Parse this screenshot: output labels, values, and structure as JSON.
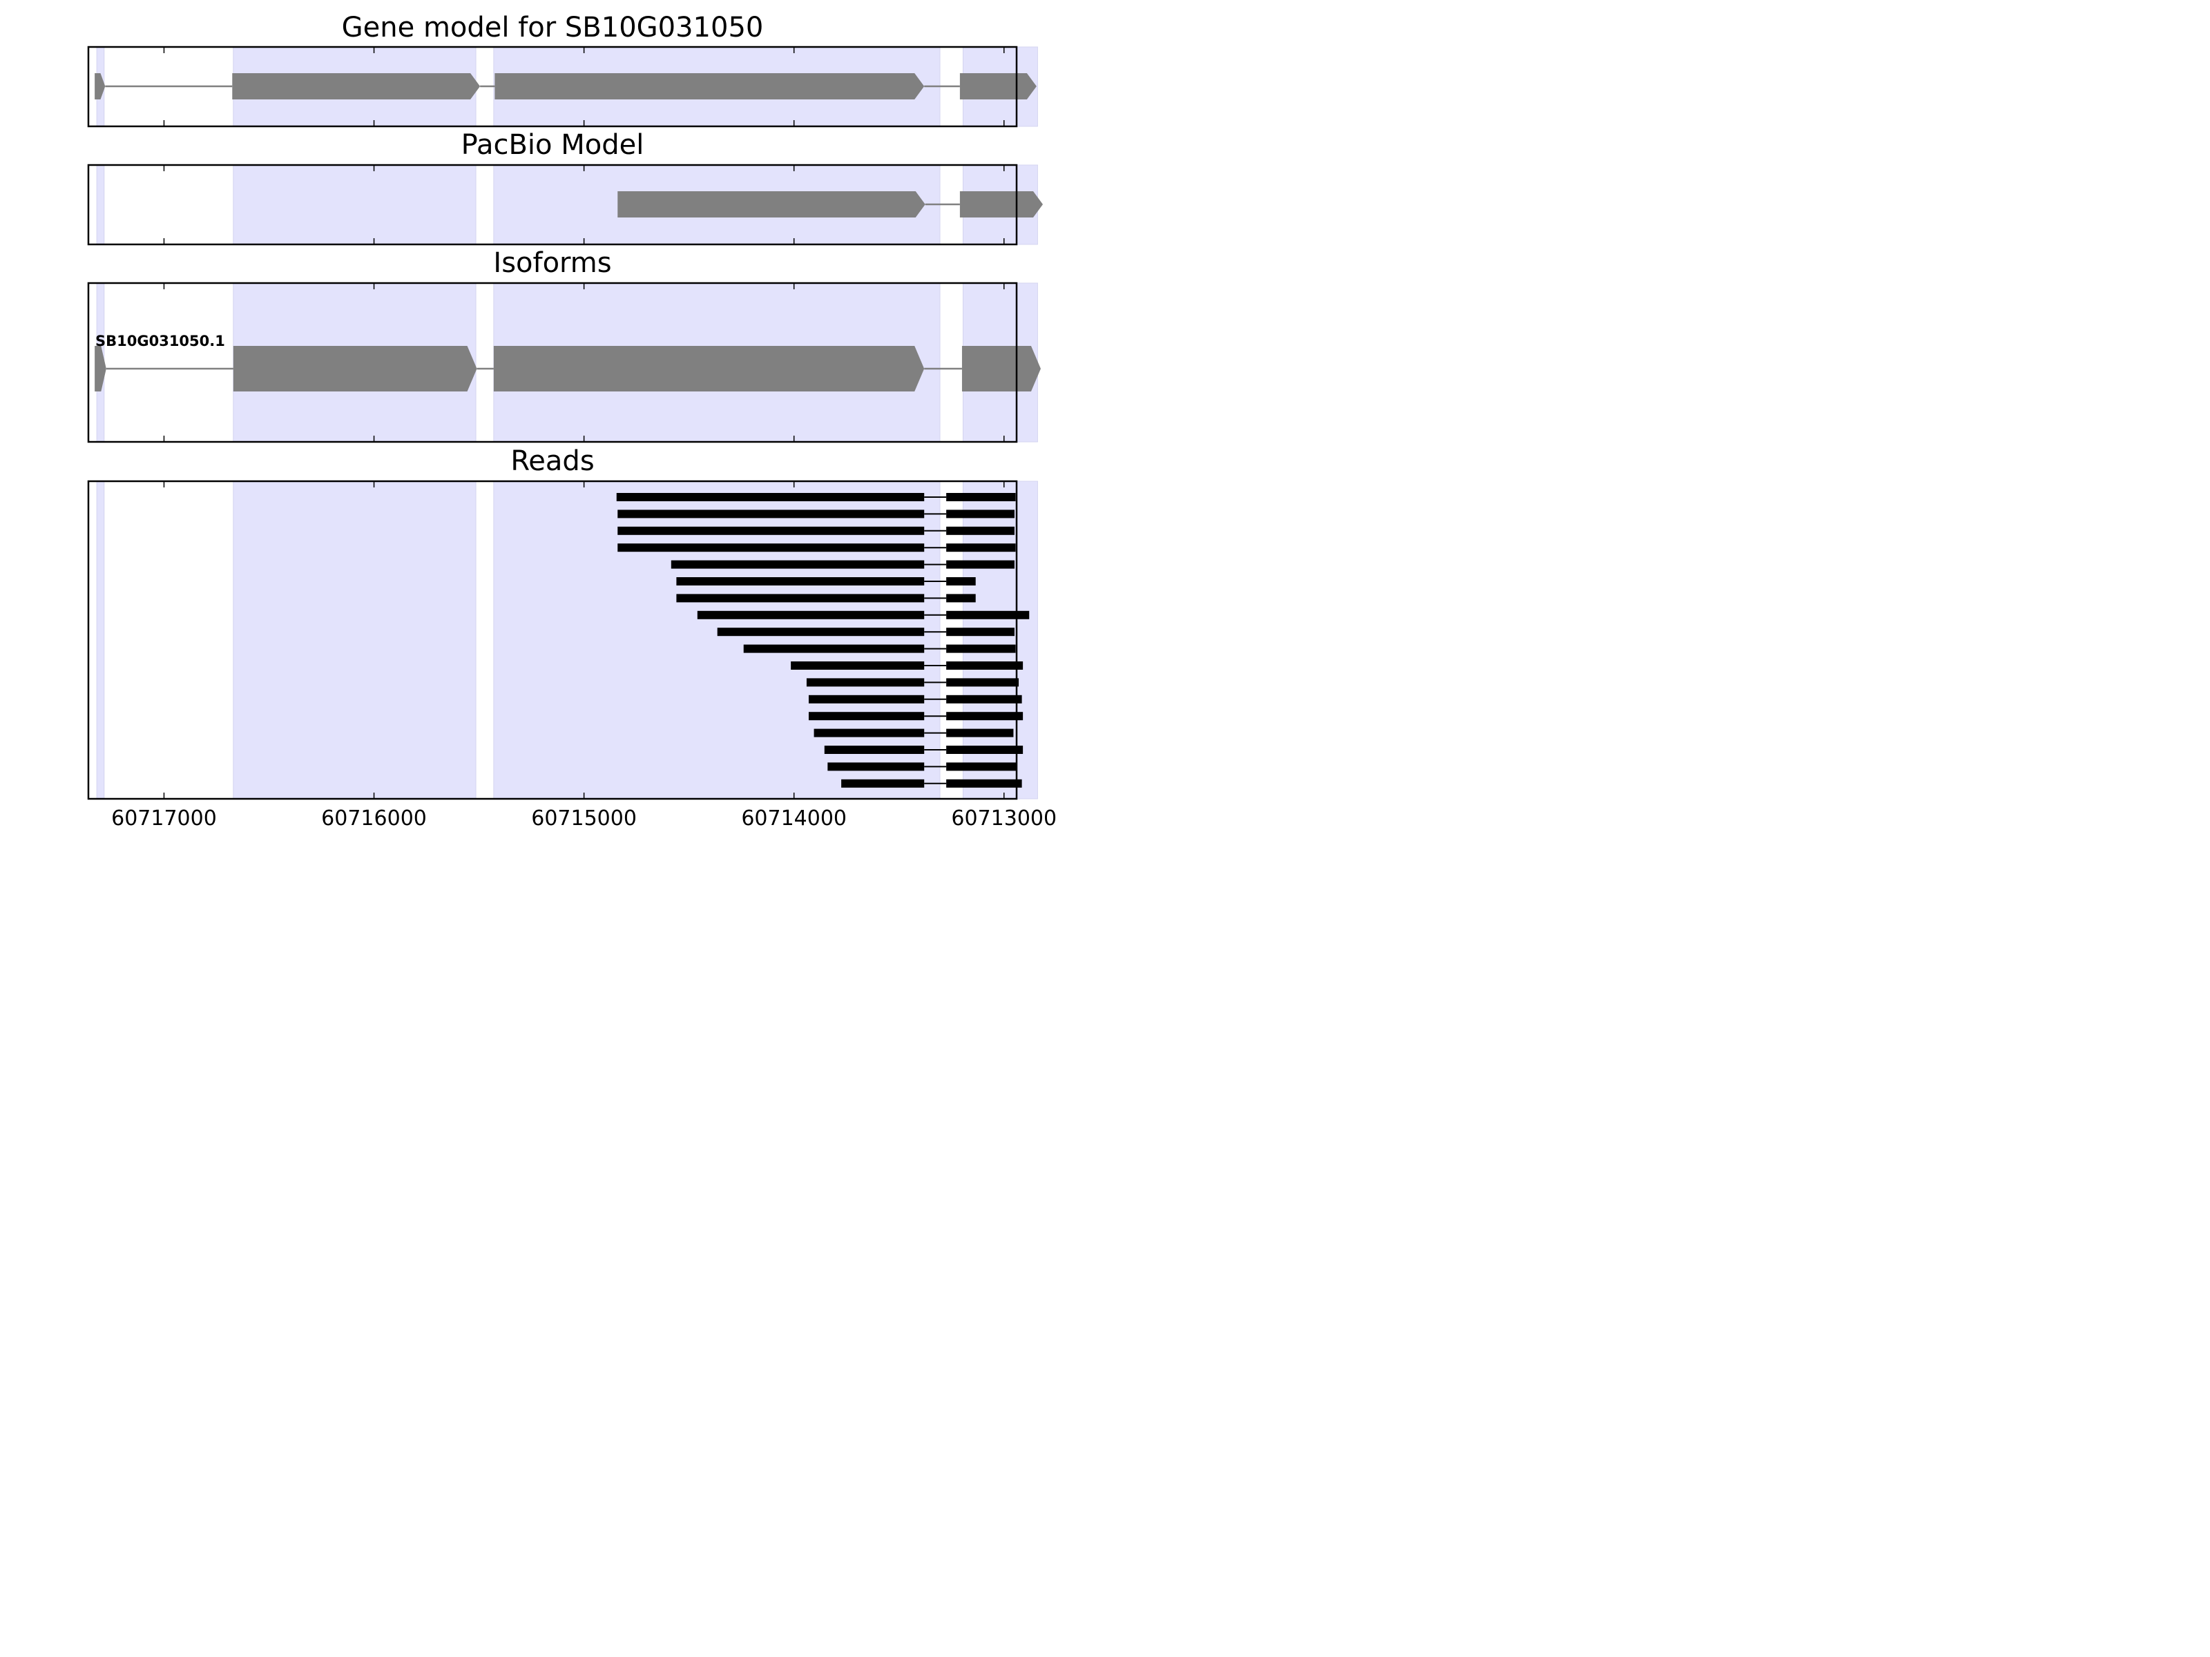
{
  "chart_data": {
    "type": "gene-track",
    "x_reversed": true,
    "x_range": [
      60717360,
      60712940
    ],
    "x_ticks": [
      60717000,
      60716000,
      60715000,
      60714000,
      60713000
    ],
    "x_tick_labels": [
      "60717000",
      "60716000",
      "60715000",
      "60714000",
      "60713000"
    ],
    "highlight_color": "#e3e3fc",
    "exon_color": "#808080",
    "read_color": "#000000",
    "highlight_regions": [
      [
        60717320,
        60717285
      ],
      [
        60716670,
        60715515
      ],
      [
        60715430,
        60713305
      ],
      [
        60713195,
        60712840
      ]
    ],
    "panels": [
      {
        "title": "Gene model for SB10G031050",
        "features": [
          {
            "exons": [
              [
                60717330,
                60717280
              ],
              [
                60716675,
                60715495
              ],
              [
                60715425,
                60713380
              ],
              [
                60713210,
                60712845
              ]
            ]
          }
        ]
      },
      {
        "title": "PacBio Model",
        "features": [
          {
            "exons": [
              [
                60714840,
                60713375
              ],
              [
                60713210,
                60712815
              ]
            ]
          }
        ]
      },
      {
        "title": "Isoforms",
        "features": [
          {
            "label": "SB10G031050.1",
            "exons": [
              [
                60717330,
                60717275
              ],
              [
                60716670,
                60715510
              ],
              [
                60715430,
                60713380
              ],
              [
                60713200,
                60712825
              ]
            ]
          }
        ]
      },
      {
        "title": "Reads",
        "features": [
          {
            "exons": [
              [
                60714845,
                60713380
              ],
              [
                60713275,
                60712945
              ]
            ]
          },
          {
            "exons": [
              [
                60714840,
                60713380
              ],
              [
                60713275,
                60712950
              ]
            ]
          },
          {
            "exons": [
              [
                60714840,
                60713380
              ],
              [
                60713275,
                60712950
              ]
            ]
          },
          {
            "exons": [
              [
                60714840,
                60713380
              ],
              [
                60713275,
                60712945
              ]
            ]
          },
          {
            "exons": [
              [
                60714585,
                60713380
              ],
              [
                60713275,
                60712950
              ]
            ]
          },
          {
            "exons": [
              [
                60714560,
                60713380
              ],
              [
                60713275,
                60713135
              ]
            ]
          },
          {
            "exons": [
              [
                60714560,
                60713380
              ],
              [
                60713275,
                60713135
              ]
            ]
          },
          {
            "exons": [
              [
                60714460,
                60713380
              ],
              [
                60713275,
                60712880
              ]
            ]
          },
          {
            "exons": [
              [
                60714365,
                60713380
              ],
              [
                60713275,
                60712950
              ]
            ]
          },
          {
            "exons": [
              [
                60714240,
                60713380
              ],
              [
                60713275,
                60712945
              ]
            ]
          },
          {
            "exons": [
              [
                60714015,
                60713380
              ],
              [
                60713275,
                60712910
              ]
            ]
          },
          {
            "exons": [
              [
                60713940,
                60713380
              ],
              [
                60713275,
                60712930
              ]
            ]
          },
          {
            "exons": [
              [
                60713930,
                60713380
              ],
              [
                60713275,
                60712915
              ]
            ]
          },
          {
            "exons": [
              [
                60713930,
                60713380
              ],
              [
                60713275,
                60712910
              ]
            ]
          },
          {
            "exons": [
              [
                60713905,
                60713380
              ],
              [
                60713275,
                60712955
              ]
            ]
          },
          {
            "exons": [
              [
                60713855,
                60713380
              ],
              [
                60713275,
                60712910
              ]
            ]
          },
          {
            "exons": [
              [
                60713840,
                60713380
              ],
              [
                60713275,
                60712940
              ]
            ]
          },
          {
            "exons": [
              [
                60713775,
                60713380
              ],
              [
                60713275,
                60712915
              ]
            ]
          }
        ]
      }
    ]
  }
}
